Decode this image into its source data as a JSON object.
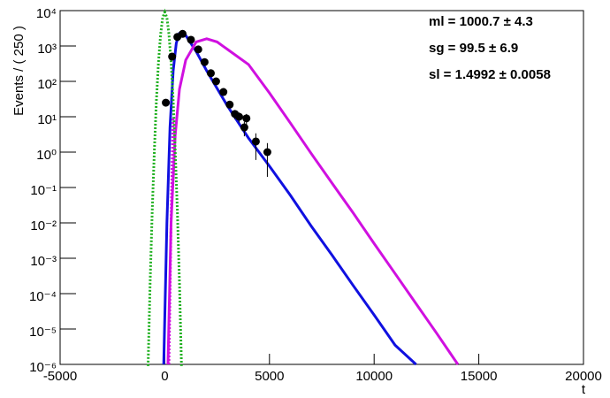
{
  "chart_data": {
    "type": "scatter",
    "y_label": "Events / ( 250 )",
    "x_label": "t",
    "xlim": [
      -5000,
      20000
    ],
    "xticks": [
      -5000,
      0,
      5000,
      10000,
      15000,
      20000
    ],
    "ylim": [
      1e-06,
      10000
    ],
    "log_y": true,
    "yticks": [
      {
        "value": 1e-06,
        "label": "10⁻⁶"
      },
      {
        "value": 1e-05,
        "label": "10⁻⁵"
      },
      {
        "value": 0.0001,
        "label": "10⁻⁴"
      },
      {
        "value": 0.001,
        "label": "10⁻³"
      },
      {
        "value": 0.01,
        "label": "10⁻²"
      },
      {
        "value": 0.1,
        "label": "10⁻¹"
      },
      {
        "value": 1,
        "label": "10⁰"
      },
      {
        "value": 10,
        "label": "10¹"
      },
      {
        "value": 100,
        "label": "10²"
      },
      {
        "value": 1000,
        "label": "10³"
      },
      {
        "value": 10000,
        "label": "10⁴"
      }
    ],
    "annotations": [
      "ml = 1000.7 ± 4.3",
      "sg = 99.5 ± 6.9",
      "sl = 1.4992 ± 0.0058"
    ],
    "points": {
      "color": "#000000",
      "x": [
        50,
        350,
        600,
        850,
        1250,
        1600,
        1900,
        2200,
        2450,
        2800,
        3100,
        3350,
        3550,
        3800,
        3900,
        4350,
        4900
      ],
      "values": [
        25,
        500,
        1800,
        2200,
        1500,
        800,
        350,
        170,
        100,
        50,
        22,
        12,
        10,
        5,
        9,
        2,
        1
      ],
      "errors": [
        5,
        22,
        42,
        47,
        39,
        28,
        19,
        13,
        10,
        7,
        4.7,
        3.5,
        3.2,
        2.2,
        3,
        1.4,
        0.8
      ]
    },
    "curves": [
      {
        "color": "#1010e0",
        "dash": false,
        "x": [
          -50,
          100,
          250,
          400,
          550,
          700,
          850,
          1000,
          1500,
          2000,
          3000,
          4000,
          5000,
          6000,
          7000,
          8000,
          9000,
          10000,
          11000,
          12000
        ],
        "values": [
          1e-06,
          0.01,
          5,
          200,
          1200,
          2300,
          2500,
          2000,
          700,
          200,
          20,
          2.5,
          0.4,
          0.06,
          0.008,
          0.0012,
          0.00017,
          2.5e-05,
          3.5e-06,
          1e-06
        ]
      },
      {
        "color": "#d010e0",
        "dash": false,
        "x": [
          150,
          300,
          500,
          700,
          1000,
          1500,
          2000,
          2500,
          3000,
          4000,
          5000,
          6000,
          7000,
          8000,
          9000,
          10000,
          11000,
          12000,
          13000,
          14000
        ],
        "values": [
          1e-06,
          0.01,
          3,
          60,
          400,
          1300,
          1600,
          1300,
          800,
          300,
          47,
          6.6,
          0.9,
          0.13,
          0.019,
          0.0026,
          0.00037,
          5.2e-05,
          7.4e-06,
          1e-06
        ]
      },
      {
        "color": "#d010e0",
        "dash": true,
        "x": [
          200,
          250,
          300,
          350,
          400
        ],
        "values": [
          1e-06,
          0.0001,
          0.01,
          0.5,
          10
        ]
      },
      {
        "color": "#20b020",
        "dash": true,
        "x": [
          -800,
          -700,
          -600,
          -500,
          -400,
          -300,
          -200,
          -100,
          0,
          100,
          200,
          300,
          400,
          500,
          600,
          700,
          800
        ],
        "values": [
          9e-07,
          0.0002,
          0.022,
          1.1,
          29,
          356,
          2140,
          6300,
          9000,
          6300,
          2140,
          356,
          29,
          1.1,
          0.022,
          0.0002,
          9e-07
        ]
      }
    ]
  }
}
